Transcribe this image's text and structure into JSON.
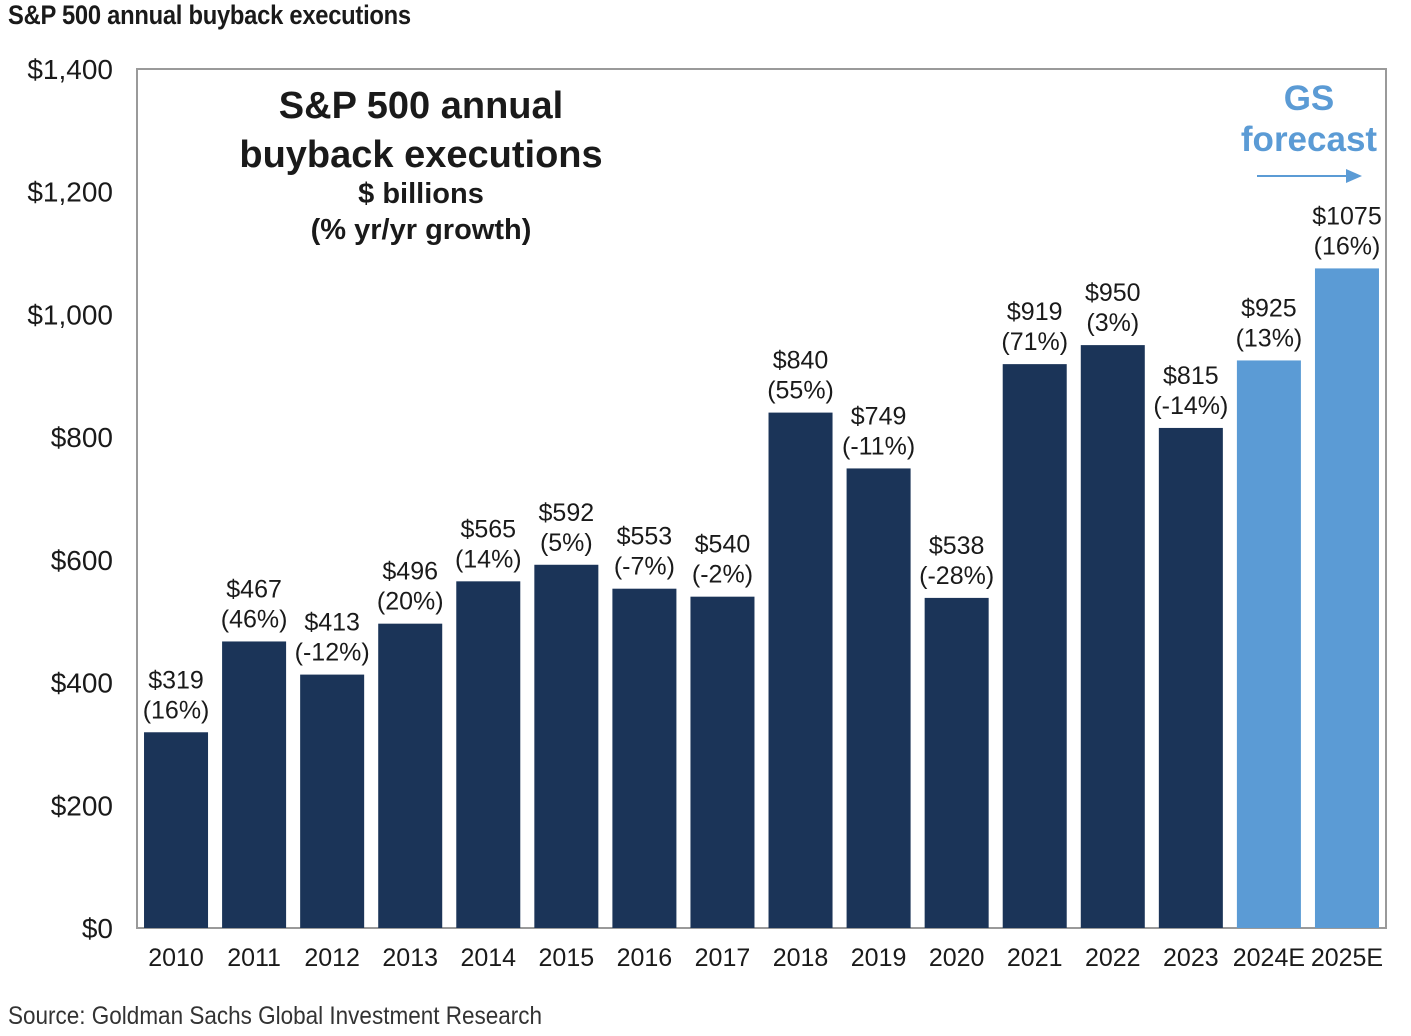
{
  "header": {
    "title": "S&P 500 annual buyback executions"
  },
  "footer": {
    "source": "Source: Goldman Sachs Global Investment Research"
  },
  "chart_data": {
    "type": "bar",
    "title_lines": [
      "S&P 500 annual",
      "buyback executions"
    ],
    "subtitle_lines": [
      "$ billions",
      "(% yr/yr growth)"
    ],
    "forecast_label_lines": [
      "GS",
      "forecast"
    ],
    "categories": [
      "2010",
      "2011",
      "2012",
      "2013",
      "2014",
      "2015",
      "2016",
      "2017",
      "2018",
      "2019",
      "2020",
      "2021",
      "2022",
      "2023",
      "2024E",
      "2025E"
    ],
    "values": [
      319,
      467,
      413,
      496,
      565,
      592,
      553,
      540,
      840,
      749,
      538,
      919,
      950,
      815,
      925,
      1075
    ],
    "value_labels": [
      "$319",
      "$467",
      "$413",
      "$496",
      "$565",
      "$592",
      "$553",
      "$540",
      "$840",
      "$749",
      "$538",
      "$919",
      "$950",
      "$815",
      "$925",
      "$1075"
    ],
    "growth_labels": [
      "(16%)",
      "(46%)",
      "(-12%)",
      "(20%)",
      "(14%)",
      "(5%)",
      "(-7%)",
      "(-2%)",
      "(55%)",
      "(-11%)",
      "(-28%)",
      "(71%)",
      "(3%)",
      "(-14%)",
      "(13%)",
      "(16%)"
    ],
    "forecast": [
      false,
      false,
      false,
      false,
      false,
      false,
      false,
      false,
      false,
      false,
      false,
      false,
      false,
      false,
      true,
      true
    ],
    "yticks": [
      0,
      200,
      400,
      600,
      800,
      1000,
      1200,
      1400
    ],
    "ytick_labels": [
      "$0",
      "$200",
      "$400",
      "$600",
      "$800",
      "$1,000",
      "$1,200",
      "$1,400"
    ],
    "ylim": [
      0,
      1400
    ],
    "grid": false,
    "xlabel": "",
    "ylabel": "",
    "colors": {
      "actual": "#1b3458",
      "forecast": "#5b9bd5",
      "forecast_text": "#5b9bd5",
      "frame": "#9a9a9a",
      "text": "#1a1a1a"
    }
  }
}
